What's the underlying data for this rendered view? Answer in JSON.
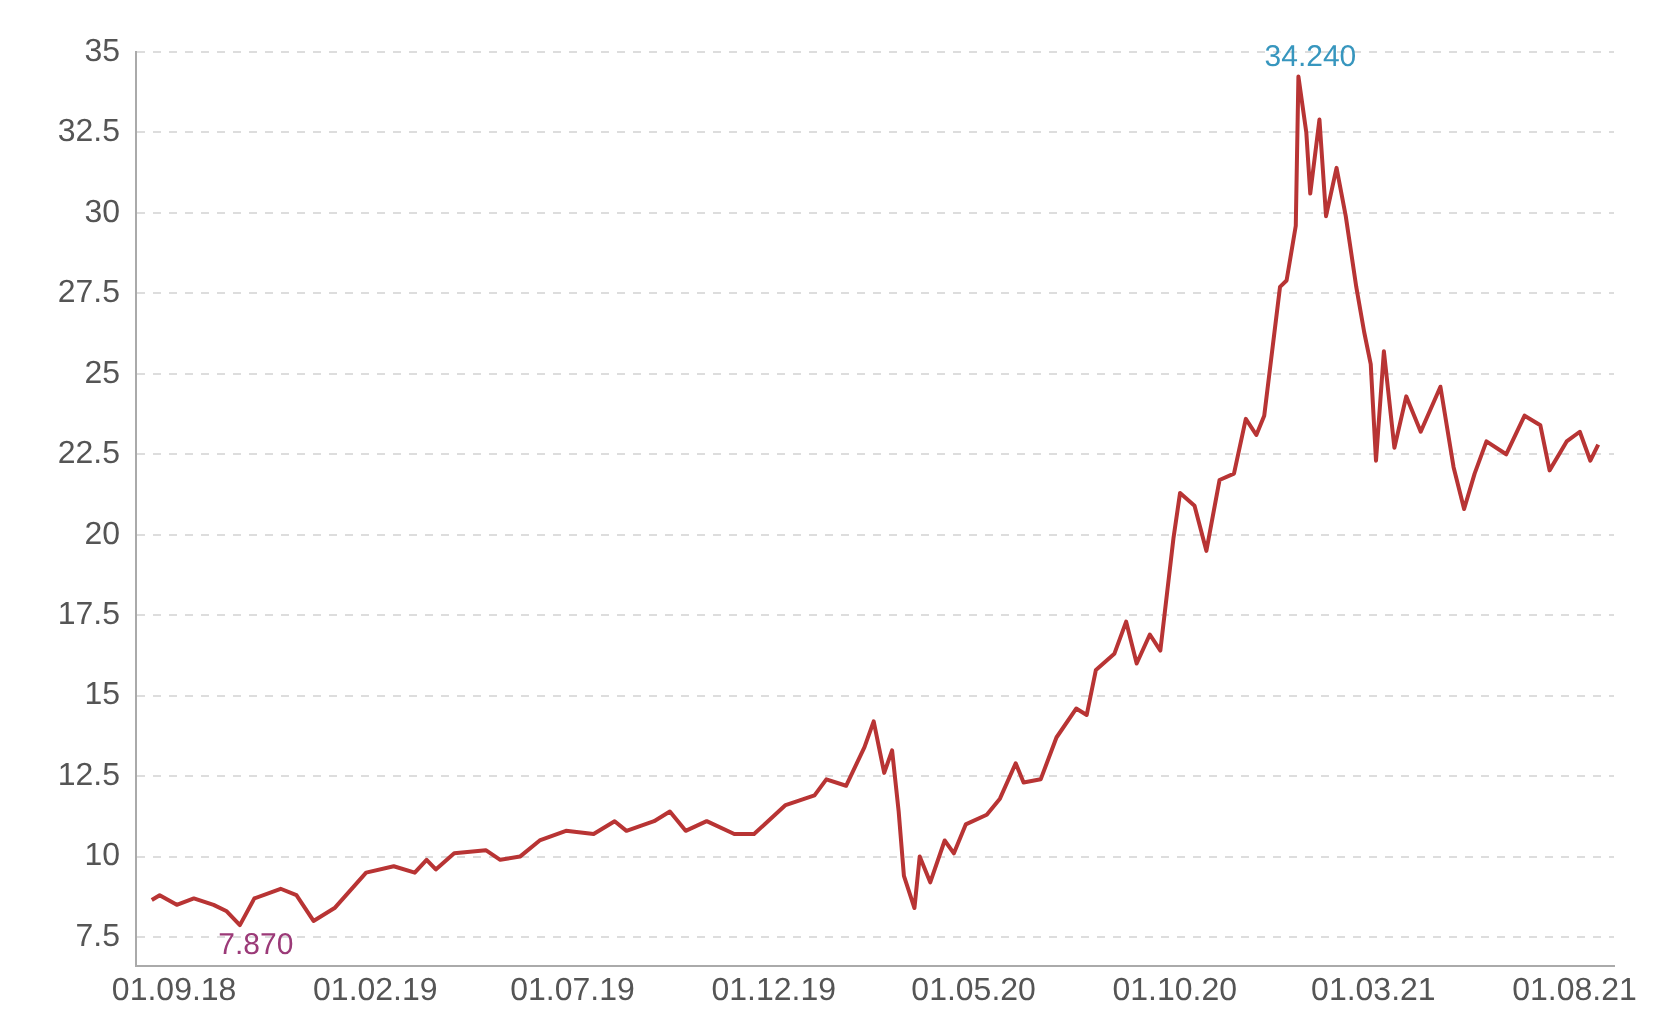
{
  "chart_data": {
    "type": "line",
    "x": [
      "2018-08-15",
      "2018-08-21",
      "2018-09-03",
      "2018-09-16",
      "2018-10-01",
      "2018-10-11",
      "2018-10-21",
      "2018-11-01",
      "2018-11-21",
      "2018-12-03",
      "2018-12-16",
      "2019-01-01",
      "2019-01-25",
      "2019-02-15",
      "2019-03-03",
      "2019-03-12",
      "2019-03-19",
      "2019-04-02",
      "2019-04-26",
      "2019-05-07",
      "2019-05-22",
      "2019-06-06",
      "2019-06-26",
      "2019-07-17",
      "2019-08-02",
      "2019-08-11",
      "2019-09-01",
      "2019-09-13",
      "2019-09-25",
      "2019-10-11",
      "2019-11-01",
      "2019-11-16",
      "2019-12-10",
      "2020-01-01",
      "2020-01-10",
      "2020-01-25",
      "2020-02-08",
      "2020-02-15",
      "2020-02-23",
      "2020-02-29",
      "2020-03-05",
      "2020-03-09",
      "2020-03-17",
      "2020-03-21",
      "2020-03-29",
      "2020-04-09",
      "2020-04-16",
      "2020-04-25",
      "2020-05-11",
      "2020-05-21",
      "2020-06-02",
      "2020-06-08",
      "2020-06-21",
      "2020-07-03",
      "2020-07-18",
      "2020-07-26",
      "2020-08-02",
      "2020-08-16",
      "2020-08-25",
      "2020-09-02",
      "2020-09-12",
      "2020-09-20",
      "2020-09-30",
      "2020-10-05",
      "2020-10-16",
      "2020-10-25",
      "2020-11-04",
      "2020-11-15",
      "2020-11-24",
      "2020-12-02",
      "2020-12-08",
      "2020-12-20",
      "2020-12-25",
      "2021-01-01",
      "2021-01-03",
      "2021-01-09",
      "2021-01-12",
      "2021-01-19",
      "2021-01-24",
      "2021-02-01",
      "2021-02-08",
      "2021-02-16",
      "2021-02-22",
      "2021-02-27",
      "2021-03-03",
      "2021-03-09",
      "2021-03-17",
      "2021-03-26",
      "2021-04-06",
      "2021-04-21",
      "2021-05-01",
      "2021-05-09",
      "2021-05-17",
      "2021-05-26",
      "2021-06-10",
      "2021-06-24",
      "2021-07-06",
      "2021-07-13",
      "2021-07-26",
      "2021-08-05",
      "2021-08-13",
      "2021-08-19"
    ],
    "series": [
      {
        "color": "#b83434",
        "values": [
          8.65,
          8.8,
          8.5,
          8.7,
          8.5,
          8.3,
          7.87,
          8.7,
          9.0,
          8.8,
          8.0,
          8.4,
          9.5,
          9.7,
          9.5,
          9.9,
          9.6,
          10.1,
          10.2,
          9.9,
          10.0,
          10.5,
          10.8,
          10.7,
          11.1,
          10.8,
          11.1,
          11.4,
          10.8,
          11.1,
          10.7,
          10.7,
          11.6,
          11.9,
          12.4,
          12.2,
          13.4,
          14.2,
          12.6,
          13.3,
          11.4,
          9.4,
          8.4,
          10.0,
          9.2,
          10.5,
          10.1,
          11.0,
          11.3,
          11.8,
          12.9,
          12.3,
          12.4,
          13.7,
          14.6,
          14.4,
          15.8,
          16.3,
          17.3,
          16.0,
          16.9,
          16.4,
          19.9,
          21.3,
          20.9,
          19.5,
          21.7,
          21.9,
          23.6,
          23.1,
          23.7,
          27.7,
          27.9,
          29.6,
          34.24,
          32.5,
          30.6,
          32.9,
          29.9,
          31.4,
          29.9,
          27.7,
          26.3,
          25.3,
          22.3,
          25.7,
          22.7,
          24.3,
          23.2,
          24.6,
          22.1,
          20.8,
          21.9,
          22.9,
          22.5,
          23.7,
          23.4,
          22.0,
          22.9,
          23.2,
          22.3,
          22.8
        ]
      }
    ],
    "xlim": [
      "2018-08-03",
      "2021-08-31"
    ],
    "xticks": [
      {
        "value": "2018-09-01",
        "label": "01.09.18"
      },
      {
        "value": "2019-02-01",
        "label": "01.02.19"
      },
      {
        "value": "2019-07-01",
        "label": "01.07.19"
      },
      {
        "value": "2019-12-01",
        "label": "01.12.19"
      },
      {
        "value": "2020-05-01",
        "label": "01.05.20"
      },
      {
        "value": "2020-10-01",
        "label": "01.10.20"
      },
      {
        "value": "2021-03-01",
        "label": "01.03.21"
      },
      {
        "value": "2021-08-01",
        "label": "01.08.21"
      }
    ],
    "ylim": [
      6.6,
      35
    ],
    "yticks": [
      7.5,
      10,
      12.5,
      15,
      17.5,
      20,
      22.5,
      25,
      27.5,
      30,
      32.5,
      35
    ],
    "grid": "y",
    "legend": false,
    "marker": "none",
    "line_style": "solid",
    "annotations": [
      {
        "text": "7.870",
        "x": "2018-10-21",
        "y": 7.87
      },
      {
        "text": "34.240",
        "x": "2021-01-03",
        "y": 34.24
      }
    ]
  }
}
